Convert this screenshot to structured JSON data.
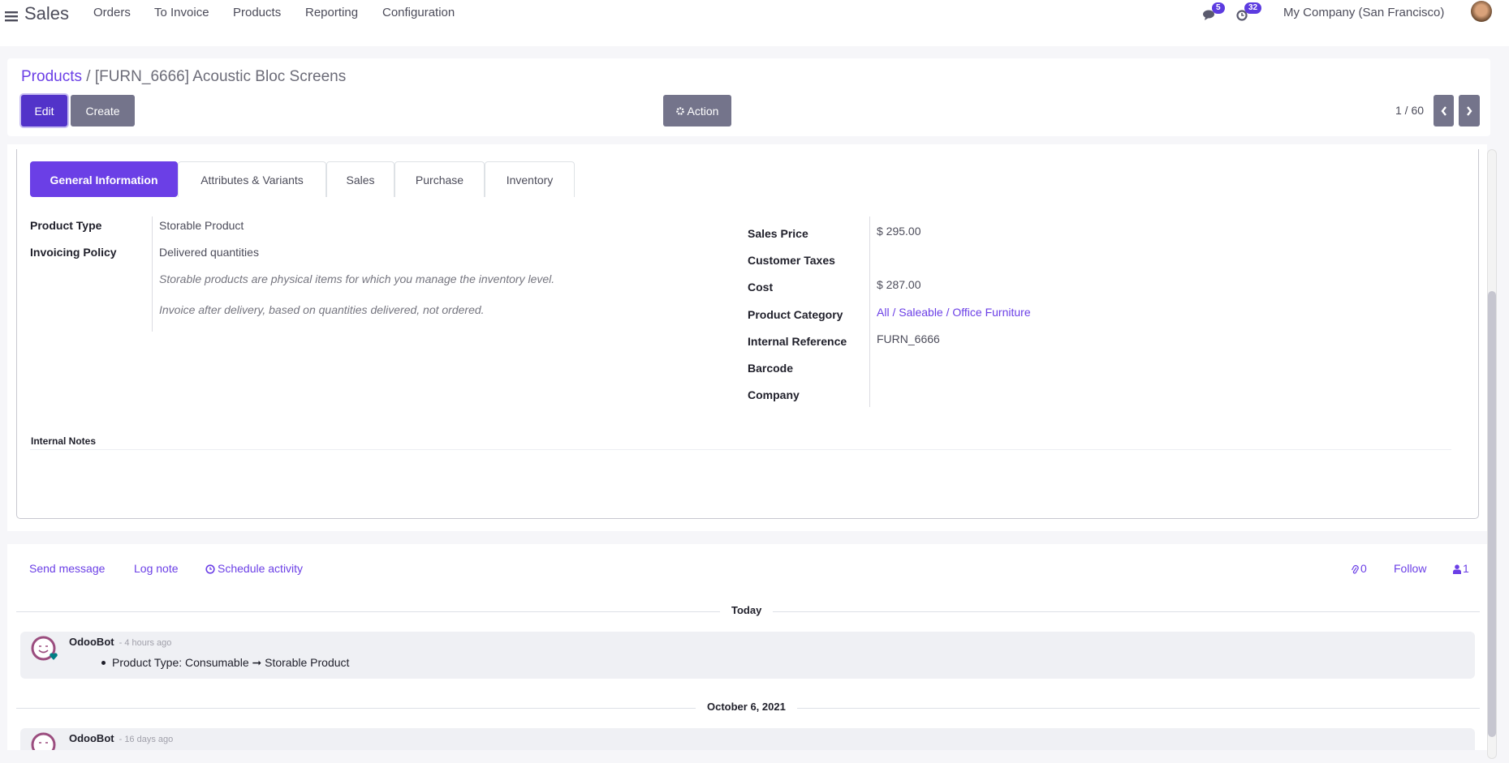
{
  "nav": {
    "app": "Sales",
    "menu": [
      "Orders",
      "To Invoice",
      "Products",
      "Reporting",
      "Configuration"
    ],
    "messages_count": "5",
    "activities_count": "32",
    "company": "My Company (San Francisco)"
  },
  "breadcrumb": {
    "parent": "Products",
    "separator": "/",
    "current": "[FURN_6666] Acoustic Bloc Screens"
  },
  "toolbar": {
    "edit": "Edit",
    "create": "Create",
    "action": "Action",
    "pager": "1 / 60"
  },
  "tabs": [
    "General Information",
    "Attributes & Variants",
    "Sales",
    "Purchase",
    "Inventory"
  ],
  "left_fields": {
    "product_type_label": "Product Type",
    "product_type": "Storable Product",
    "invoicing_label": "Invoicing Policy",
    "invoicing": "Delivered quantities",
    "help1": "Storable products are physical items for which you manage the inventory level.",
    "help2": "Invoice after delivery, based on quantities delivered, not ordered."
  },
  "right_fields": [
    {
      "label": "Sales Price",
      "value": "$ 295.00"
    },
    {
      "label": "Customer Taxes",
      "value": ""
    },
    {
      "label": "Cost",
      "value": "$ 287.00"
    },
    {
      "label": "Product Category",
      "value": "All / Saleable / Office Furniture"
    },
    {
      "label": "Internal Reference",
      "value": "FURN_6666"
    },
    {
      "label": "Barcode",
      "value": ""
    },
    {
      "label": "Company",
      "value": ""
    }
  ],
  "internal_notes": "Internal Notes",
  "chatter": {
    "send_message": "Send message",
    "log_note": "Log note",
    "schedule_activity": "Schedule activity",
    "attachments": "0",
    "follow": "Follow",
    "followers": "1",
    "groups": [
      {
        "date": "Today",
        "messages": [
          {
            "author": "OdooBot",
            "time": "- 4 hours ago",
            "body": "Product Type: Consumable ➞ Storable Product"
          }
        ]
      },
      {
        "date": "October 6, 2021",
        "messages": [
          {
            "author": "OdooBot",
            "time": "- 16 days ago"
          }
        ]
      }
    ]
  },
  "colors": {
    "accent": "#6b3fe6",
    "secondary_button": "#74748b",
    "background": "#f6f6f9"
  }
}
